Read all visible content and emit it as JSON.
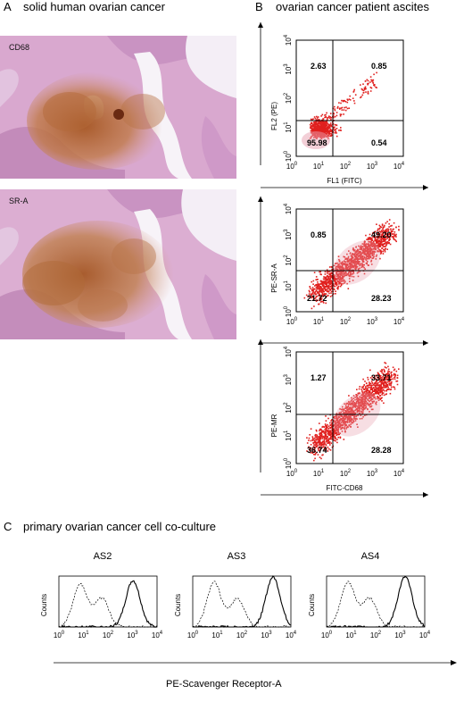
{
  "panel_a": {
    "letter": "A",
    "title": "solid human ovarian cancer",
    "images": [
      {
        "label": "CD68"
      },
      {
        "label": "SR-A"
      }
    ]
  },
  "panel_b": {
    "letter": "B",
    "title": "ovarian cancer patient ascites",
    "plots": [
      {
        "ylabel": "FL2 (PE)",
        "xlabel": "FL1 (FITC)",
        "quadrants": {
          "ul": "2.63",
          "ur": "0.85",
          "ll": "95.98",
          "lr": "0.54"
        }
      },
      {
        "ylabel": "PE-SR-A",
        "xlabel": "",
        "quadrants": {
          "ul": "0.85",
          "ur": "49.20",
          "ll": "21.72",
          "lr": "28.23"
        }
      },
      {
        "ylabel": "PE-MR",
        "xlabel": "FITC-CD68",
        "quadrants": {
          "ul": "1.27",
          "ur": "33.71",
          "ll": "36.74",
          "lr": "28.28"
        }
      }
    ],
    "axis_tick_base": "10",
    "axis_tick_exponents": [
      "0",
      "1",
      "2",
      "3",
      "4"
    ]
  },
  "panel_c": {
    "letter": "C",
    "title": "primary ovarian cancer cell co-culture",
    "histograms": [
      {
        "title": "AS2",
        "ylabel": "Counts"
      },
      {
        "title": "AS3",
        "ylabel": "Counts"
      },
      {
        "title": "AS4",
        "ylabel": "Counts"
      }
    ],
    "xlabel": "PE-Scavenger Receptor-A"
  },
  "colors": {
    "dots": "#e0201e",
    "tissue_pink": "#c98ab4",
    "tissue_brown": "#b8703a"
  }
}
